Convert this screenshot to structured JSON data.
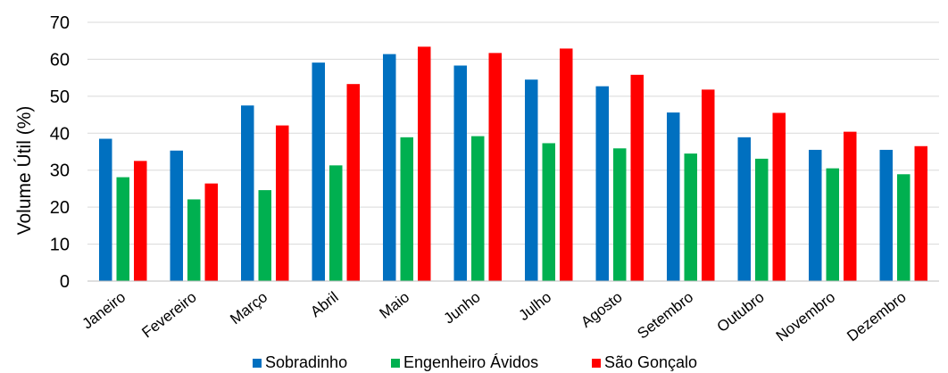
{
  "chart_data": {
    "type": "bar",
    "title": "",
    "xlabel": "",
    "ylabel": "Volume Útil (%)",
    "ylim": [
      0,
      70
    ],
    "yticks": [
      0,
      10,
      20,
      30,
      40,
      50,
      60,
      70
    ],
    "grid": true,
    "legend_position": "bottom",
    "categories": [
      "Janeiro",
      "Fevereiro",
      "Março",
      "Abril",
      "Maio",
      "Junho",
      "Julho",
      "Agosto",
      "Setembro",
      "Outubro",
      "Novembro",
      "Dezembro"
    ],
    "series": [
      {
        "name": "Sobradinho",
        "color": "#0070C0",
        "values": [
          38.5,
          35.3,
          47.5,
          59.1,
          61.4,
          58.3,
          54.5,
          52.7,
          45.6,
          38.9,
          35.5,
          35.5
        ]
      },
      {
        "name": "Engenheiro Ávidos",
        "color": "#00B050",
        "values": [
          28.1,
          22.1,
          24.6,
          31.3,
          38.9,
          39.2,
          37.3,
          35.9,
          34.5,
          33.1,
          30.5,
          28.9
        ]
      },
      {
        "name": "São Gonçalo",
        "color": "#FF0000",
        "values": [
          32.5,
          26.4,
          42.1,
          53.3,
          63.4,
          61.7,
          62.9,
          55.8,
          51.8,
          45.5,
          40.4,
          36.5
        ]
      }
    ]
  }
}
